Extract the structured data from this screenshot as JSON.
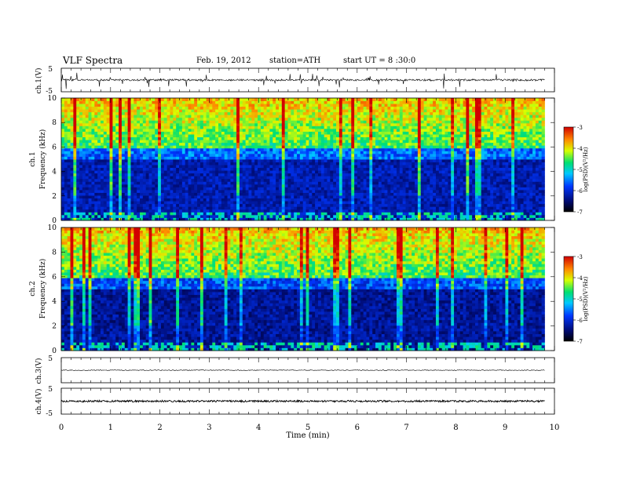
{
  "header": {
    "title": "VLF Spectra",
    "date": "Feb. 19, 2012",
    "station": "station=ATH",
    "start": "start UT =  8 :30:0"
  },
  "chart_data": [
    {
      "id": "ch1-waveform",
      "type": "line",
      "ylabel": "ch.1(V)",
      "ylim": [
        -5,
        5
      ],
      "yticks": [
        5,
        -5
      ],
      "xlim": [
        0,
        10
      ],
      "signal": {
        "baseline": 0,
        "noise_amplitude": 0.4,
        "spike_amplitude": 3.5,
        "data_end_min": 9.8
      }
    },
    {
      "id": "ch1-spectrogram",
      "type": "heatmap",
      "ylabel": "ch.1",
      "ylabel2": "Frequency (kHz)",
      "ylim": [
        0,
        10
      ],
      "yticks": [
        0,
        2,
        4,
        6,
        8,
        10
      ],
      "xlim": [
        0,
        10
      ],
      "data_end_min": 9.8,
      "colorbar": {
        "label": "log(PSD)(V²/Hz)",
        "range": [
          -7,
          -3
        ],
        "ticks": [
          -3,
          -4,
          -5,
          -6,
          -7
        ]
      }
    },
    {
      "id": "ch2-spectrogram",
      "type": "heatmap",
      "ylabel": "ch.2",
      "ylabel2": "Frequency (kHz)",
      "ylim": [
        0,
        10
      ],
      "yticks": [
        0,
        2,
        4,
        6,
        8,
        10
      ],
      "xlim": [
        0,
        10
      ],
      "data_end_min": 9.8,
      "colorbar": {
        "label": "log(PSD)(V²/Hz)",
        "range": [
          -7,
          -3
        ],
        "ticks": [
          -3,
          -4,
          -5,
          -6,
          -7
        ]
      }
    },
    {
      "id": "ch3-waveform",
      "type": "line",
      "ylabel": "ch.3(V)",
      "ylim": [
        -5,
        5
      ],
      "yticks": [
        5
      ],
      "xlim": [
        0,
        10
      ],
      "signal": {
        "baseline": 0,
        "noise_amplitude": 0.15,
        "spike_amplitude": 0,
        "data_end_min": 9.8
      }
    },
    {
      "id": "ch4-waveform",
      "type": "line",
      "ylabel": "ch.4(V)",
      "ylim": [
        -5,
        5
      ],
      "yticks": [
        5,
        -5
      ],
      "xlim": [
        0,
        10
      ],
      "signal": {
        "baseline": 0,
        "noise_amplitude": 0.35,
        "spike_amplitude": 0,
        "data_end_min": 9.8
      }
    }
  ],
  "xaxis": {
    "label": "Time (min)",
    "ticks": [
      "0",
      "1",
      "2",
      "3",
      "4",
      "5",
      "6",
      "7",
      "8",
      "9",
      "10"
    ]
  }
}
